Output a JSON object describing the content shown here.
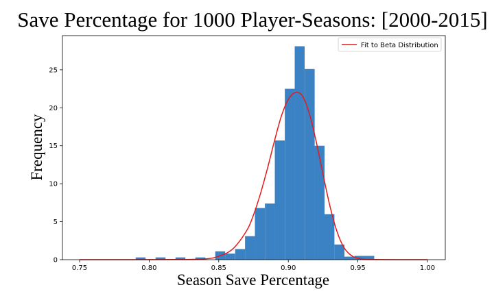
{
  "chart_data": {
    "type": "bar",
    "title": "Save Percentage for 1000 Player-Seasons: [2000-2015]",
    "xlabel": "Season Save Percentage",
    "ylabel": "Frequency",
    "xlim": [
      0.75,
      1.0
    ],
    "ylim": [
      0,
      29.5
    ],
    "xticks": [
      "0.75",
      "0.80",
      "0.85",
      "0.90",
      "0.95",
      "1.00"
    ],
    "yticks": [
      "0",
      "5",
      "10",
      "15",
      "20",
      "25"
    ],
    "bar_color": "#3b82c4",
    "curve_color": "#e31a1c",
    "bin_width": 0.007143,
    "bins": [
      {
        "x0": 0.7903,
        "value": 0.3
      },
      {
        "x0": 0.8046,
        "value": 0.3
      },
      {
        "x0": 0.8189,
        "value": 0.3
      },
      {
        "x0": 0.8332,
        "value": 0.3
      },
      {
        "x0": 0.8475,
        "value": 1.1
      },
      {
        "x0": 0.8546,
        "value": 0.8
      },
      {
        "x0": 0.8618,
        "value": 1.4
      },
      {
        "x0": 0.8689,
        "value": 3.1
      },
      {
        "x0": 0.876,
        "value": 6.8
      },
      {
        "x0": 0.8832,
        "value": 7.4
      },
      {
        "x0": 0.8903,
        "value": 15.7
      },
      {
        "x0": 0.8975,
        "value": 22.5
      },
      {
        "x0": 0.9046,
        "value": 28.1
      },
      {
        "x0": 0.9118,
        "value": 25.1
      },
      {
        "x0": 0.9189,
        "value": 15.0
      },
      {
        "x0": 0.926,
        "value": 6.0
      },
      {
        "x0": 0.9332,
        "value": 2.0
      },
      {
        "x0": 0.9403,
        "value": 0.4
      },
      {
        "x0": 0.9475,
        "value": 0.5
      },
      {
        "x0": 0.9546,
        "value": 0.5
      }
    ],
    "series": [
      {
        "name": "Fit to Beta Distribution",
        "type": "line",
        "x": [
          0.75,
          0.82,
          0.84,
          0.85,
          0.86,
          0.87,
          0.875,
          0.88,
          0.885,
          0.89,
          0.895,
          0.9,
          0.905,
          0.91,
          0.915,
          0.92,
          0.925,
          0.93,
          0.935,
          0.94,
          0.945,
          0.95,
          0.96,
          1.0
        ],
        "y": [
          0.0,
          0.02,
          0.1,
          0.45,
          1.4,
          3.8,
          5.9,
          8.7,
          12.0,
          15.6,
          18.9,
          21.1,
          22.0,
          21.6,
          19.3,
          15.6,
          11.2,
          7.0,
          3.7,
          1.6,
          0.6,
          0.2,
          0.02,
          0.0
        ]
      }
    ],
    "legend": "top-right",
    "grid": false
  }
}
